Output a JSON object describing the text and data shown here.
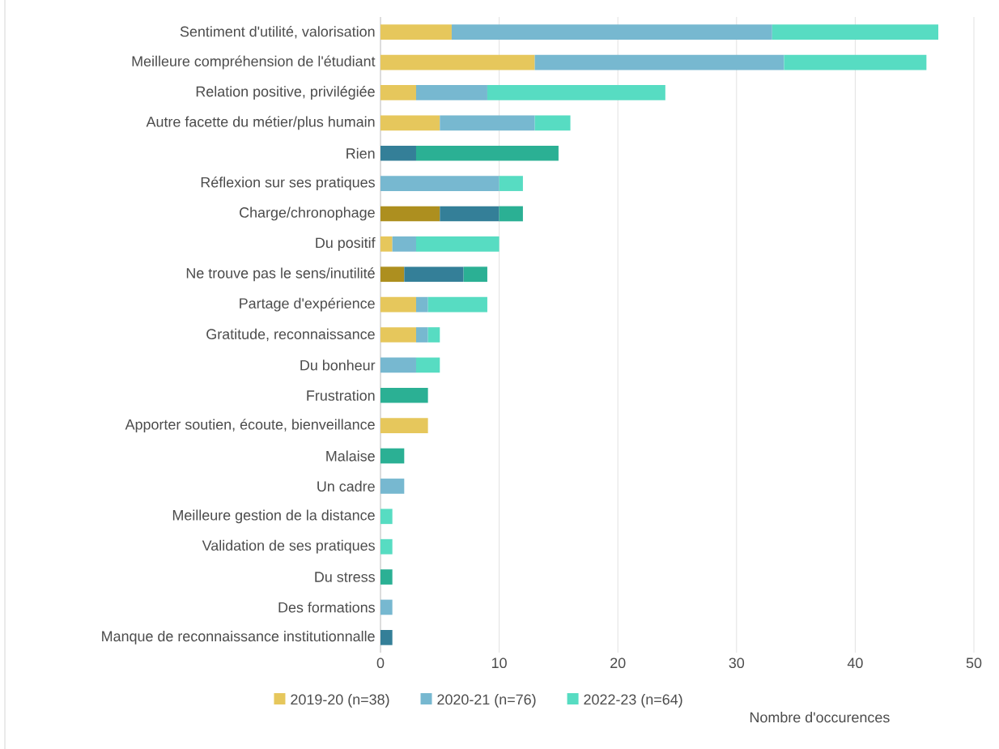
{
  "chart_data": {
    "type": "bar",
    "orientation": "horizontal",
    "stacked": true,
    "xlabel": "Nombre d'occurences",
    "categories": [
      "Sentiment d'utilité, valorisation",
      "Meilleure compréhension de l'étudiant",
      "Relation positive, privilégiée",
      "Autre facette du métier/plus humain",
      "Rien",
      "Réflexion sur ses pratiques",
      "Charge/chronophage",
      "Du positif",
      "Ne trouve pas le sens/inutilité",
      "Partage d'expérience",
      "Gratitude, reconnaissance",
      "Du bonheur",
      "Frustration",
      "Apporter soutien, écoute, bienveillance",
      "Malaise",
      "Un cadre",
      "Meilleure gestion de la distance",
      "Validation de ses pratiques",
      "Du stress",
      "Des formations",
      "Manque de reconnaissance institutionnalle"
    ],
    "series": [
      {
        "name": "2019-20 (n=38)",
        "color": "#e6c75c",
        "values": [
          6,
          13,
          3,
          5,
          null,
          null,
          5,
          1,
          2,
          3,
          3,
          null,
          null,
          4,
          null,
          null,
          null,
          null,
          null,
          null,
          null
        ],
        "colors": [
          "#e6c75c",
          "#e6c75c",
          "#e6c75c",
          "#e6c75c",
          "#e6c75c",
          "#e6c75c",
          "#ad8f1f",
          "#e6c75c",
          "#ad8f1f",
          "#e6c75c",
          "#e6c75c",
          "#e6c75c",
          "#e6c75c",
          "#e6c75c",
          "#e6c75c",
          "#e6c75c",
          "#e6c75c",
          "#e6c75c",
          "#e6c75c",
          "#e6c75c",
          "#e6c75c"
        ]
      },
      {
        "name": "2020-21 (n=76)",
        "color": "#77b8d0",
        "values": [
          27,
          21,
          6,
          8,
          3,
          10,
          5,
          2,
          5,
          1,
          1,
          3,
          null,
          null,
          null,
          2,
          null,
          null,
          null,
          1,
          1
        ],
        "colors": [
          "#77b8d0",
          "#77b8d0",
          "#77b8d0",
          "#77b8d0",
          "#347f98",
          "#77b8d0",
          "#347f98",
          "#77b8d0",
          "#347f98",
          "#77b8d0",
          "#77b8d0",
          "#77b8d0",
          "#77b8d0",
          "#77b8d0",
          "#77b8d0",
          "#77b8d0",
          "#77b8d0",
          "#77b8d0",
          "#77b8d0",
          "#77b8d0",
          "#347f98"
        ]
      },
      {
        "name": "2022-23 (n=64)",
        "color": "#57dcc2",
        "values": [
          14,
          12,
          15,
          3,
          12,
          2,
          2,
          7,
          2,
          5,
          1,
          2,
          4,
          null,
          2,
          null,
          1,
          1,
          1,
          null,
          null
        ],
        "colors": [
          "#57dcc2",
          "#57dcc2",
          "#57dcc2",
          "#57dcc2",
          "#2bb094",
          "#57dcc2",
          "#2bb094",
          "#57dcc2",
          "#2bb094",
          "#57dcc2",
          "#57dcc2",
          "#57dcc2",
          "#2bb094",
          "#57dcc2",
          "#2bb094",
          "#57dcc2",
          "#57dcc2",
          "#57dcc2",
          "#2bb094",
          "#57dcc2",
          "#57dcc2"
        ]
      }
    ],
    "xlim": [
      0,
      50
    ],
    "xticks": [
      0,
      10,
      20,
      30,
      40,
      50
    ],
    "grid": "x",
    "legend": "bottom"
  }
}
